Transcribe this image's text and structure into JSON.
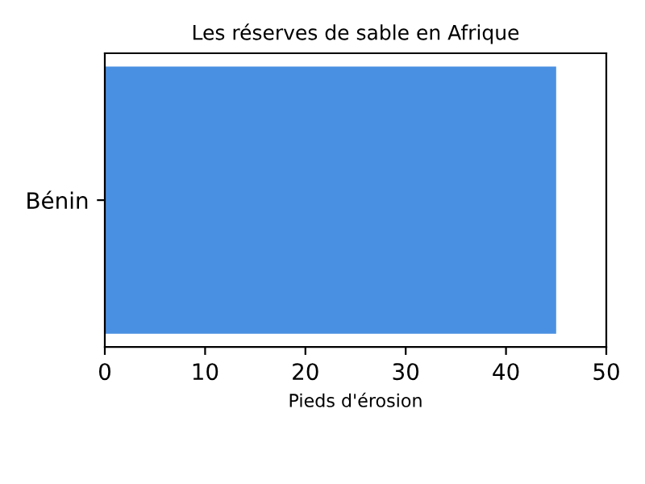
{
  "chart_data": {
    "type": "bar",
    "orientation": "horizontal",
    "title": "Les réserves de sable en Afrique",
    "xlabel": "Pieds d'érosion",
    "categories": [
      "Bénin"
    ],
    "series": [
      {
        "color": "#4a90e2",
        "values": [
          45
        ]
      }
    ],
    "xlim": [
      0,
      50
    ],
    "xticks": [
      0,
      10,
      20,
      30,
      40,
      50
    ]
  }
}
